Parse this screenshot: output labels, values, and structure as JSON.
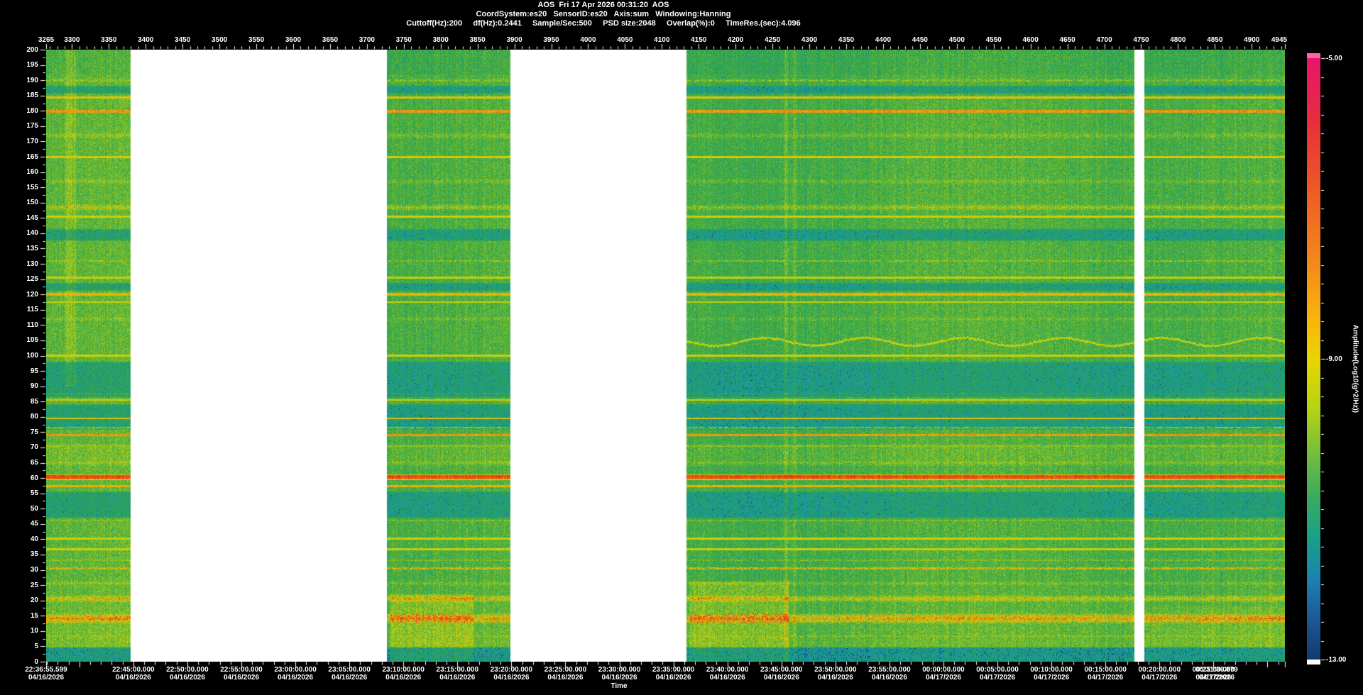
{
  "header": {
    "line1": "AOS  Fri 17 Apr 2026 00:31:20  AOS",
    "line2": "CoordSystem:es20   SensorID:es20   Axis:sum   Windowing:Hanning",
    "line3": "Cuttoff(Hz):200     df(Hz):0.2441     Sample/Sec:500     PSD size:2048     Overlap(%):0     TimeRes.(sec):4.096"
  },
  "chart_data": {
    "type": "heatmap",
    "subtype": "spectrogram",
    "title": "AOS  Fri 17 Apr 2026 00:31:20  AOS",
    "xlabel": "Time",
    "ylabel": "",
    "colorbar_label": "Amplitude(Log10(g^2/Hz))",
    "x_axis_top": {
      "min": 3265,
      "max": 4945,
      "major_step": 50,
      "minor_step": 10,
      "major_start": 3300,
      "tick_labels": [
        3265,
        3300,
        3350,
        3400,
        3450,
        3500,
        3550,
        3600,
        3650,
        3700,
        3750,
        3800,
        3850,
        3900,
        3950,
        4000,
        4050,
        4100,
        4150,
        4200,
        4250,
        4300,
        4350,
        4400,
        4450,
        4500,
        4550,
        4600,
        4650,
        4700,
        4750,
        4800,
        4850,
        4900,
        4945
      ]
    },
    "y_axis": {
      "min": 0,
      "max": 200,
      "label_step": 5,
      "minor_step": 2.5,
      "units": "Hz",
      "tick_labels": [
        200,
        195,
        190,
        185,
        180,
        175,
        170,
        165,
        160,
        155,
        150,
        145,
        140,
        135,
        130,
        125,
        120,
        115,
        110,
        105,
        100,
        95,
        90,
        85,
        80,
        75,
        70,
        65,
        60,
        55,
        50,
        45,
        40,
        35,
        30,
        25,
        20,
        15,
        10,
        5,
        0
      ]
    },
    "time_axis": {
      "duration_sec": 6881.28,
      "minor_step_sec": 60,
      "first_minor_offset_sec": 4.401,
      "major_step_sec": 300,
      "first_major_offset_sec": 184.401,
      "labels": [
        {
          "t": 0,
          "time": "22:36:55.599",
          "date": "04/16/2026",
          "edge": "start"
        },
        {
          "t": 484.401,
          "time": "22:45:00.000",
          "date": "04/16/2026"
        },
        {
          "t": 784.401,
          "time": "22:50:00.000",
          "date": "04/16/2026"
        },
        {
          "t": 1084.401,
          "time": "22:55:00.000",
          "date": "04/16/2026"
        },
        {
          "t": 1384.401,
          "time": "23:00:00.000",
          "date": "04/16/2026"
        },
        {
          "t": 1684.401,
          "time": "23:05:00.000",
          "date": "04/16/2026"
        },
        {
          "t": 1984.401,
          "time": "23:10:00.000",
          "date": "04/16/2026"
        },
        {
          "t": 2284.401,
          "time": "23:15:00.000",
          "date": "04/16/2026"
        },
        {
          "t": 2584.401,
          "time": "23:20:00.000",
          "date": "04/16/2026"
        },
        {
          "t": 2884.401,
          "time": "23:25:00.000",
          "date": "04/16/2026"
        },
        {
          "t": 3184.401,
          "time": "23:30:00.000",
          "date": "04/16/2026"
        },
        {
          "t": 3484.401,
          "time": "23:35:00.000",
          "date": "04/16/2026"
        },
        {
          "t": 3784.401,
          "time": "23:40:00.000",
          "date": "04/16/2026"
        },
        {
          "t": 4084.401,
          "time": "23:45:00.000",
          "date": "04/16/2026"
        },
        {
          "t": 4384.401,
          "time": "23:50:00.000",
          "date": "04/16/2026"
        },
        {
          "t": 4684.401,
          "time": "23:55:00.000",
          "date": "04/16/2026"
        },
        {
          "t": 4984.401,
          "time": "00:00:00.000",
          "date": "04/17/2026"
        },
        {
          "t": 5284.401,
          "time": "00:05:00.000",
          "date": "04/17/2026"
        },
        {
          "t": 5584.401,
          "time": "00:10:00.000",
          "date": "04/17/2026"
        },
        {
          "t": 5884.401,
          "time": "00:15:00.000",
          "date": "04/17/2026"
        },
        {
          "t": 6184.401,
          "time": "00:20:00.000",
          "date": "04/17/2026"
        },
        {
          "t": 6484.401,
          "time": "00:25:00.000",
          "date": "04/17/2026"
        },
        {
          "t": 6881.28,
          "time": "00:31:36.879",
          "date": "04/17/2026",
          "edge": "end"
        }
      ]
    },
    "colorbar": {
      "max": -5,
      "min": -13,
      "tick_labels": [
        "-5.00",
        "-9.00",
        "-13.00"
      ],
      "tick_values": [
        -5,
        -9,
        -13
      ],
      "minor_tick_step": 0.25,
      "over_color": "#f668a8",
      "under_color": "#ffffff",
      "gradient": [
        {
          "p": 0.0,
          "c": "#e8156d"
        },
        {
          "p": 0.1,
          "c": "#e62c3e"
        },
        {
          "p": 0.22,
          "c": "#ee5b24"
        },
        {
          "p": 0.34,
          "c": "#f4881c"
        },
        {
          "p": 0.44,
          "c": "#f8b70a"
        },
        {
          "p": 0.5,
          "c": "#e8d400"
        },
        {
          "p": 0.58,
          "c": "#b8d312"
        },
        {
          "p": 0.66,
          "c": "#72bd3e"
        },
        {
          "p": 0.73,
          "c": "#3aab5e"
        },
        {
          "p": 0.8,
          "c": "#18a089"
        },
        {
          "p": 0.87,
          "c": "#1d7fb0"
        },
        {
          "p": 0.94,
          "c": "#1c5492"
        },
        {
          "p": 1.0,
          "c": "#123a6e"
        }
      ]
    },
    "segments": [
      {
        "x0": 0.0,
        "x1": 0.068,
        "type": "data"
      },
      {
        "x0": 0.068,
        "x1": 0.275,
        "type": "no-data"
      },
      {
        "x0": 0.275,
        "x1": 0.375,
        "type": "data"
      },
      {
        "x0": 0.375,
        "x1": 0.517,
        "type": "no-data"
      },
      {
        "x0": 0.517,
        "x1": 0.8785,
        "type": "data"
      },
      {
        "x0": 0.8785,
        "x1": 0.887,
        "type": "no-data"
      },
      {
        "x0": 0.887,
        "x1": 1.0,
        "type": "data"
      }
    ],
    "bands": [
      {
        "f": 190,
        "hw": 0.3,
        "type": "line",
        "v": 0.74,
        "dash": 0.5
      },
      {
        "f": 187,
        "hw": 1.2,
        "type": "teal"
      },
      {
        "f": 184.5,
        "hw": 0.35,
        "type": "line",
        "v": 0.84
      },
      {
        "f": 180,
        "hw": 0.5,
        "type": "orange",
        "v": 0.9
      },
      {
        "f": 172,
        "hw": 1.2,
        "type": "fuzzy",
        "s": 0.1
      },
      {
        "f": 165,
        "hw": 0.35,
        "type": "line",
        "v": 0.83
      },
      {
        "f": 157,
        "hw": 1.0,
        "type": "fuzzy",
        "s": 0.09
      },
      {
        "f": 148.5,
        "hw": 1.2,
        "type": "fuzzy",
        "s": 0.16
      },
      {
        "f": 145.5,
        "hw": 0.3,
        "type": "line",
        "v": 0.8
      },
      {
        "f": 139.5,
        "hw": 1.8,
        "type": "teal"
      },
      {
        "f": 131,
        "hw": 0.3,
        "type": "line",
        "v": 0.74,
        "dash": 0.55
      },
      {
        "f": 125.5,
        "hw": 0.3,
        "type": "line",
        "v": 0.78
      },
      {
        "f": 122.5,
        "hw": 1.2,
        "type": "teal"
      },
      {
        "f": 120,
        "hw": 0.5,
        "type": "line",
        "v": 0.87
      },
      {
        "f": 117.5,
        "hw": 0.3,
        "type": "line",
        "v": 0.78
      },
      {
        "f": 112,
        "hw": 0.8,
        "type": "fuzzy",
        "s": 0.08
      },
      {
        "f": 104.5,
        "hw": 0.3,
        "type": "wavy",
        "v": 0.8,
        "from": 0.517
      },
      {
        "f": 100,
        "hw": 0.3,
        "type": "line",
        "v": 0.8
      },
      {
        "f": 92.2,
        "hw": 5.7,
        "type": "teal"
      },
      {
        "f": 87.5,
        "hw": 0.5,
        "type": "fuzzy",
        "s": 0.12
      },
      {
        "f": 85.5,
        "hw": 0.3,
        "type": "line",
        "v": 0.82
      },
      {
        "f": 80,
        "hw": 4.0,
        "type": "teal"
      },
      {
        "f": 79.5,
        "hw": 0.3,
        "type": "line",
        "v": 0.85
      },
      {
        "f": 76.5,
        "hw": 0.25,
        "type": "line",
        "v": 0.76,
        "dash": 0.6
      },
      {
        "f": 74,
        "hw": 0.45,
        "type": "orange",
        "v": 0.9
      },
      {
        "f": 70.5,
        "hw": 0.25,
        "type": "line",
        "v": 0.73,
        "dash": 0.6
      },
      {
        "f": 67.5,
        "hw": 3.5,
        "type": "bright",
        "s": 0.05
      },
      {
        "f": 65,
        "hw": 0.6,
        "type": "fuzzy",
        "s": 0.08
      },
      {
        "f": 60.3,
        "hw": 0.95,
        "type": "line",
        "v": 0.86
      },
      {
        "f": 60.3,
        "hw": 0.5,
        "type": "red",
        "v": 0.975
      },
      {
        "f": 57.2,
        "hw": 0.35,
        "type": "orange",
        "v": 0.87
      },
      {
        "f": 51.2,
        "hw": 4.2,
        "type": "teal"
      },
      {
        "f": 46,
        "hw": 0.25,
        "type": "line",
        "v": 0.72,
        "dash": 0.5
      },
      {
        "f": 40.2,
        "hw": 0.3,
        "type": "line",
        "v": 0.8
      },
      {
        "f": 36.6,
        "hw": 0.3,
        "type": "line",
        "v": 0.79
      },
      {
        "f": 33,
        "hw": 0.25,
        "type": "line",
        "v": 0.72,
        "dash": 0.5
      },
      {
        "f": 30.5,
        "hw": 0.35,
        "type": "orange",
        "v": 0.86,
        "dash": 0.7
      },
      {
        "f": 25.5,
        "hw": 0.8,
        "type": "fuzzy",
        "s": 0.1
      },
      {
        "f": 20.5,
        "hw": 1.3,
        "type": "fuzzy",
        "s": 0.22
      },
      {
        "f": 14,
        "hw": 1.7,
        "type": "fuzzy",
        "s": 0.28,
        "orange": true
      },
      {
        "f": 8.2,
        "hw": 0.3,
        "type": "line",
        "v": 0.72,
        "dash": 0.5
      },
      {
        "f": 2.2,
        "hw": 2.3,
        "type": "dark"
      }
    ],
    "events": [
      {
        "x0": 0.015,
        "x1": 0.024,
        "f0": 90,
        "f1": 200,
        "amp": 0.1
      },
      {
        "x0": 0.278,
        "x1": 0.345,
        "f0": 0,
        "f1": 22,
        "amp": 0.12
      },
      {
        "x0": 0.519,
        "x1": 0.6,
        "f0": 0,
        "f1": 26,
        "amp": 0.13
      },
      {
        "x0": 0.596,
        "x1": 0.599,
        "f0": 0,
        "f1": 200,
        "amp": 0.13
      },
      {
        "x0": 0.603,
        "x1": 0.606,
        "f0": 0,
        "f1": 200,
        "amp": 0.13
      },
      {
        "x0": 0.887,
        "x1": 1.0,
        "f0": 0,
        "f1": 18,
        "amp": 0.05
      }
    ],
    "value_colormap": [
      {
        "v": 0.0,
        "c": "#0a2a52"
      },
      {
        "v": 0.1,
        "c": "#1464a0"
      },
      {
        "v": 0.2,
        "c": "#18a0b0"
      },
      {
        "v": 0.32,
        "c": "#1f9878"
      },
      {
        "v": 0.45,
        "c": "#2ea352"
      },
      {
        "v": 0.58,
        "c": "#55b23a"
      },
      {
        "v": 0.7,
        "c": "#93c526"
      },
      {
        "v": 0.82,
        "c": "#d8d406"
      },
      {
        "v": 0.9,
        "c": "#f09c0e"
      },
      {
        "v": 1.0,
        "c": "#e83018"
      }
    ],
    "gap_color": "#ffffff",
    "background_color": "#000000",
    "text_color": "#ffffff"
  }
}
